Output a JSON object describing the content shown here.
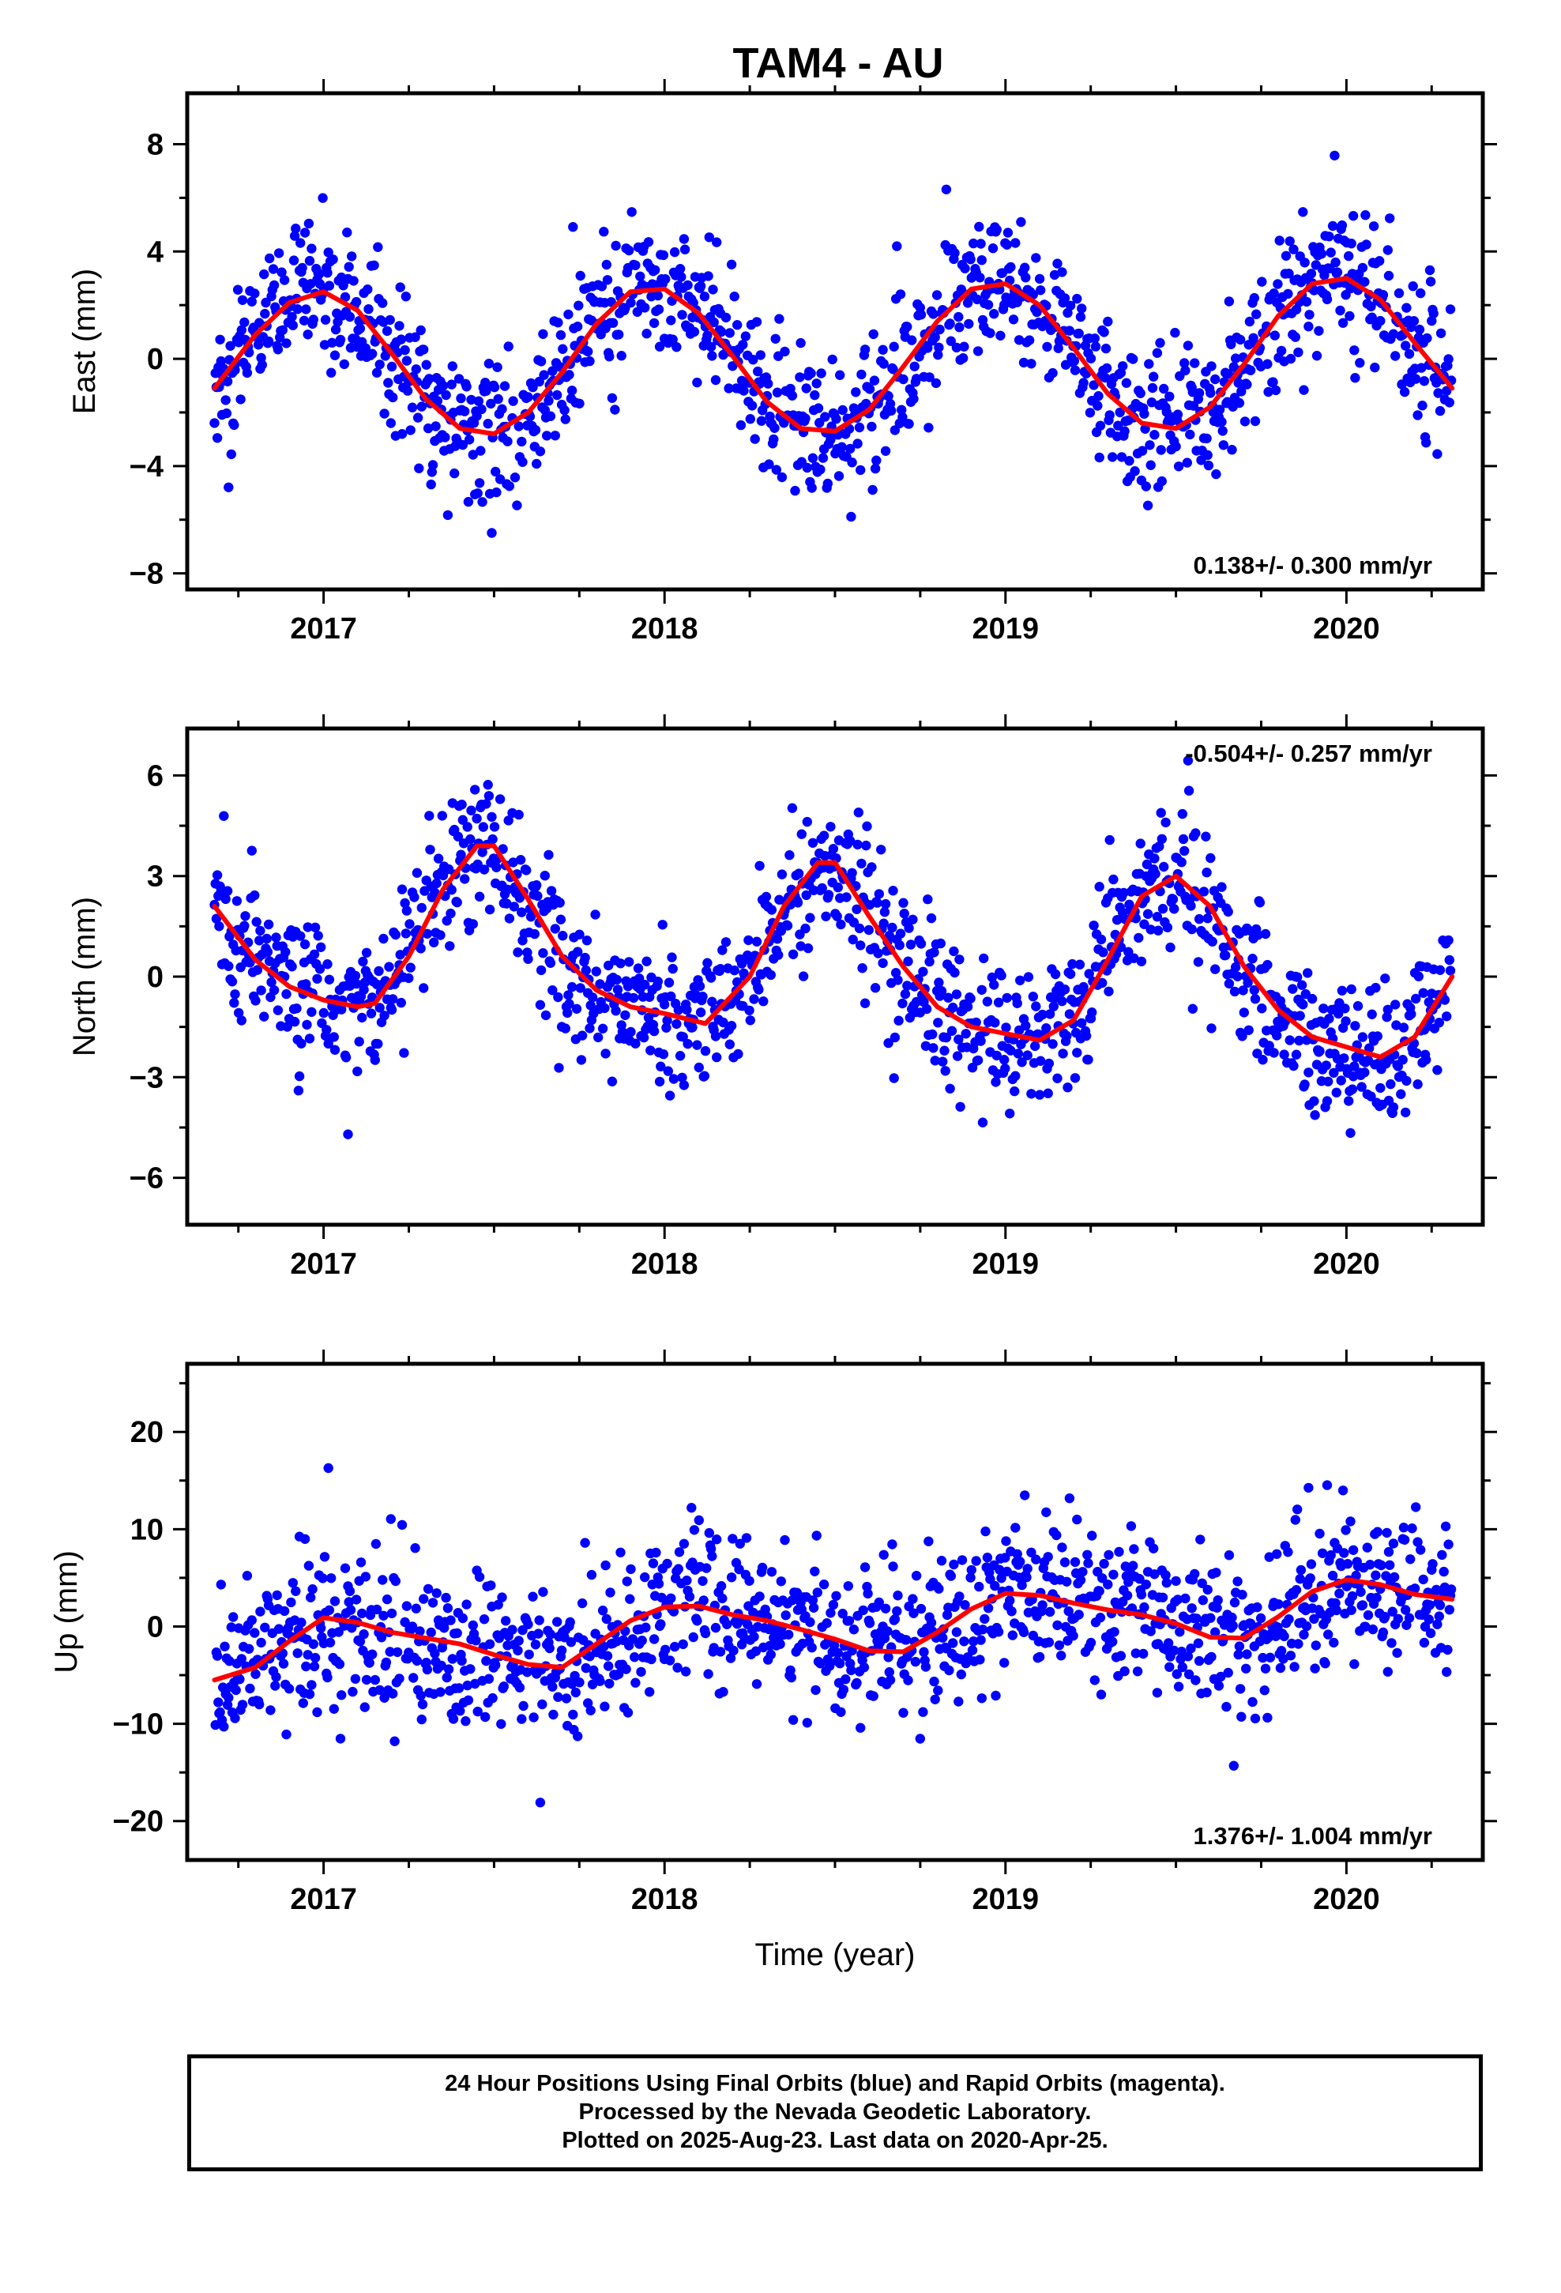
{
  "title": "TAM4 - AU",
  "colors": {
    "final_orbits": "#0000ff",
    "rapid_orbits": "#ff00ff",
    "model": "#ff0000",
    "axes": "#000000"
  },
  "footer": {
    "line1": "24 Hour Positions Using Final Orbits (blue) and Rapid Orbits (magenta).",
    "line2": "Processed by the Nevada Geodetic Laboratory.",
    "line3": "Plotted on 2025-Aug-23. Last data on 2020-Apr-25."
  },
  "chart_data": [
    {
      "type": "scatter",
      "component": "east",
      "ylabel": "East (mm)",
      "xlabel": "",
      "xlim": [
        2016.6,
        2020.4
      ],
      "ylim": [
        -8.6,
        9.9
      ],
      "xticks": [
        2017,
        2018,
        2019,
        2020
      ],
      "yticks": [
        -8,
        -4,
        0,
        4,
        8
      ],
      "ytick_labels": [
        "−8",
        "−4",
        "0",
        "4",
        "8"
      ],
      "rate_label": "0.138+/- 0.300 mm/yr",
      "rate_position": "bottom-right",
      "model": {
        "name": "seasonal fit",
        "x": [
          2016.68,
          2016.8,
          2016.9,
          2017.0,
          2017.1,
          2017.2,
          2017.3,
          2017.4,
          2017.5,
          2017.6,
          2017.7,
          2017.8,
          2017.9,
          2018.0,
          2018.1,
          2018.2,
          2018.3,
          2018.4,
          2018.5,
          2018.6,
          2018.7,
          2018.8,
          2018.9,
          2019.0,
          2019.1,
          2019.2,
          2019.3,
          2019.4,
          2019.5,
          2019.6,
          2019.7,
          2019.8,
          2019.9,
          2020.0,
          2020.1,
          2020.2,
          2020.31
        ],
        "y": [
          -1.1,
          0.9,
          2.1,
          2.5,
          1.8,
          0.2,
          -1.5,
          -2.6,
          -2.8,
          -2.0,
          -0.5,
          1.3,
          2.5,
          2.6,
          1.7,
          0.1,
          -1.6,
          -2.6,
          -2.7,
          -1.9,
          -0.3,
          1.4,
          2.6,
          2.8,
          2.0,
          0.4,
          -1.3,
          -2.4,
          -2.6,
          -1.8,
          -0.2,
          1.6,
          2.8,
          3.0,
          2.2,
          0.6,
          -1.1
        ]
      },
      "scatter_spread": 1.25
    },
    {
      "type": "scatter",
      "component": "north",
      "ylabel": "North (mm)",
      "xlabel": "",
      "xlim": [
        2016.6,
        2020.4
      ],
      "ylim": [
        -7.4,
        7.4
      ],
      "xticks": [
        2017,
        2018,
        2019,
        2020
      ],
      "yticks": [
        -6,
        -3,
        0,
        3,
        6
      ],
      "ytick_labels": [
        "−6",
        "−3",
        "0",
        "3",
        "6"
      ],
      "rate_label": "-0.504+/- 0.257 mm/yr",
      "rate_position": "top-right",
      "model": {
        "name": "seasonal fit",
        "x": [
          2016.68,
          2016.8,
          2016.9,
          2017.0,
          2017.1,
          2017.15,
          2017.25,
          2017.35,
          2017.45,
          2017.5,
          2017.6,
          2017.7,
          2017.8,
          2017.9,
          2018.0,
          2018.12,
          2018.25,
          2018.35,
          2018.45,
          2018.5,
          2018.6,
          2018.7,
          2018.8,
          2018.9,
          2019.0,
          2019.1,
          2019.2,
          2019.3,
          2019.4,
          2019.5,
          2019.6,
          2019.7,
          2019.8,
          2019.9,
          2020.0,
          2020.1,
          2020.2,
          2020.31
        ],
        "y": [
          2.1,
          0.5,
          -0.3,
          -0.7,
          -0.9,
          -0.8,
          0.6,
          2.6,
          3.9,
          3.9,
          2.3,
          0.6,
          -0.4,
          -0.9,
          -1.1,
          -1.4,
          0.0,
          2.1,
          3.4,
          3.4,
          1.8,
          0.3,
          -0.9,
          -1.5,
          -1.7,
          -1.9,
          -1.3,
          0.5,
          2.4,
          3.0,
          2.1,
          0.3,
          -1.0,
          -1.8,
          -2.1,
          -2.4,
          -1.8,
          0.0
        ]
      },
      "scatter_spread": 1.05
    },
    {
      "type": "scatter",
      "component": "up",
      "ylabel": "Up (mm)",
      "xlabel": "Time (year)",
      "xlim": [
        2016.6,
        2020.4
      ],
      "ylim": [
        -24,
        27
      ],
      "xticks": [
        2017,
        2018,
        2019,
        2020
      ],
      "yticks": [
        -20,
        -10,
        0,
        10,
        20
      ],
      "ytick_labels": [
        "−20",
        "−10",
        "0",
        "10",
        "20"
      ],
      "rate_label": "1.376+/- 1.004 mm/yr",
      "rate_position": "bottom-right",
      "model": {
        "name": "seasonal fit",
        "x": [
          2016.68,
          2016.8,
          2016.9,
          2017.0,
          2017.1,
          2017.2,
          2017.3,
          2017.4,
          2017.5,
          2017.6,
          2017.7,
          2017.8,
          2017.9,
          2018.0,
          2018.1,
          2018.2,
          2018.3,
          2018.4,
          2018.5,
          2018.6,
          2018.7,
          2018.8,
          2018.9,
          2019.0,
          2019.1,
          2019.2,
          2019.3,
          2019.4,
          2019.5,
          2019.6,
          2019.7,
          2019.8,
          2019.9,
          2020.0,
          2020.1,
          2020.2,
          2020.31
        ],
        "y": [
          -5.5,
          -4.2,
          -1.5,
          0.9,
          0.4,
          -0.6,
          -1.2,
          -1.8,
          -2.9,
          -3.9,
          -4.2,
          -1.8,
          0.6,
          2.0,
          2.1,
          1.2,
          0.6,
          -0.3,
          -1.3,
          -2.5,
          -2.6,
          -0.6,
          1.8,
          3.4,
          3.2,
          2.4,
          1.7,
          1.2,
          0.3,
          -1.1,
          -1.2,
          1.0,
          3.6,
          4.8,
          4.3,
          3.3,
          2.8
        ]
      },
      "scatter_spread": 3.9
    }
  ]
}
